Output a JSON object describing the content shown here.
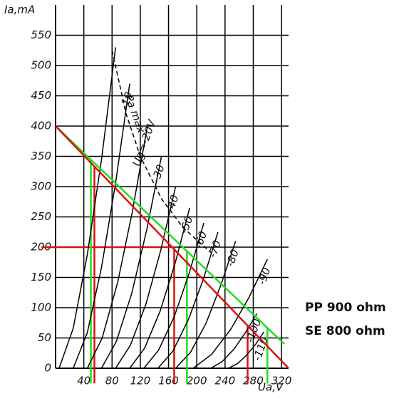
{
  "chart_data": {
    "type": "line",
    "x_label": "Ua,V",
    "y_label": "Ia,mA",
    "xlim": [
      0,
      330
    ],
    "ylim": [
      0,
      600
    ],
    "xticks": [
      40,
      80,
      120,
      160,
      200,
      240,
      280,
      320
    ],
    "yticks": [
      0,
      50,
      100,
      150,
      200,
      250,
      300,
      350,
      400,
      450,
      500,
      550
    ],
    "grid": true,
    "series": [
      {
        "color": "#000000",
        "x": [
          5,
          25,
          45,
          65,
          85
        ],
        "values": [
          0,
          66,
          188,
          344,
          530
        ]
      },
      {
        "name": "-10",
        "color": "#000000",
        "x": [
          25,
          45,
          65,
          85,
          105
        ],
        "values": [
          0,
          59,
          166,
          306,
          470
        ]
      },
      {
        "name": "Ug=-20V",
        "color": "#000000",
        "x": [
          45,
          66,
          88,
          109,
          130
        ],
        "values": [
          0,
          50,
          142,
          260,
          400
        ]
      },
      {
        "name": "-30",
        "color": "#000000",
        "x": [
          65,
          86,
          108,
          129,
          150
        ],
        "values": [
          0,
          44,
          124,
          228,
          350
        ]
      },
      {
        "name": "-40",
        "color": "#000000",
        "x": [
          85,
          106,
          128,
          149,
          170
        ],
        "values": [
          0,
          38,
          106,
          195,
          300
        ]
      },
      {
        "name": "-50",
        "color": "#000000",
        "x": [
          105,
          126,
          148,
          169,
          190
        ],
        "values": [
          0,
          33,
          94,
          172,
          265
        ]
      },
      {
        "name": "-60",
        "color": "#000000",
        "x": [
          125,
          146,
          168,
          189,
          210
        ],
        "values": [
          0,
          30,
          85,
          156,
          240
        ]
      },
      {
        "name": "-70",
        "color": "#000000",
        "x": [
          145,
          166,
          188,
          209,
          230
        ],
        "values": [
          0,
          28,
          80,
          146,
          225
        ]
      },
      {
        "name": "-80",
        "color": "#000000",
        "x": [
          170,
          191,
          213,
          234,
          255
        ],
        "values": [
          0,
          26,
          74,
          137,
          210
        ]
      },
      {
        "name": "-90",
        "color": "#000000",
        "x": [
          195,
          221,
          248,
          274,
          300
        ],
        "values": [
          0,
          23,
          64,
          117,
          180
        ]
      },
      {
        "name": "-100",
        "color": "#000000",
        "x": [
          220,
          236,
          253,
          269,
          285
        ],
        "values": [
          0,
          11,
          32,
          59,
          90
        ]
      },
      {
        "name": "-110",
        "color": "#000000",
        "x": [
          245,
          258,
          270,
          283,
          295
        ],
        "values": [
          0,
          8,
          21,
          39,
          60
        ]
      },
      {
        "name": "Pa max",
        "color": "#000000",
        "dashed": true,
        "x": [
          80,
          100,
          120,
          150,
          180,
          220
        ],
        "values": [
          525,
          420,
          350,
          280,
          233,
          191
        ]
      },
      {
        "name": "PP 900 ohm",
        "color": "#22dd22",
        "legend": true,
        "x": [
          0,
          324
        ],
        "values": [
          400,
          40
        ]
      },
      {
        "name": "SE 800 ohm",
        "color": "#dd1111",
        "legend": true,
        "x": [
          0,
          330
        ],
        "values": [
          400,
          0
        ]
      }
    ],
    "guides": [
      {
        "color": "#dd1111",
        "x": [
          -20,
          168
        ],
        "values": [
          200,
          200
        ]
      },
      {
        "color": "#dd1111",
        "x": [
          55,
          55
        ],
        "values": [
          333,
          -25
        ]
      },
      {
        "color": "#dd1111",
        "x": [
          168,
          168
        ],
        "values": [
          200,
          -25
        ]
      },
      {
        "color": "#dd1111",
        "x": [
          272,
          272
        ],
        "values": [
          70,
          -25
        ]
      },
      {
        "color": "#22dd22",
        "x": [
          50,
          50
        ],
        "values": [
          344,
          -25
        ]
      },
      {
        "color": "#22dd22",
        "x": [
          186,
          186
        ],
        "values": [
          193,
          -25
        ]
      },
      {
        "color": "#22dd22",
        "x": [
          300,
          300
        ],
        "values": [
          67,
          -25
        ]
      }
    ]
  }
}
